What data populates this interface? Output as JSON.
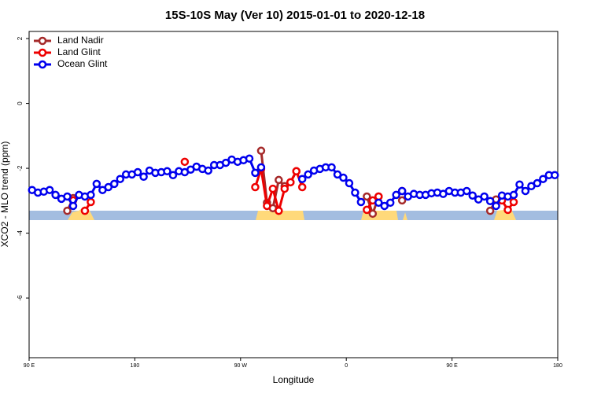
{
  "chart_data": {
    "type": "line",
    "title": "15S-10S May (Ver 10)   2015-01-01 to 2020-12-18",
    "x_label": "Longitude",
    "y_label": "XCO2 - MLO trend (ppm)",
    "xlim": [
      90,
      540
    ],
    "xticks": [
      {
        "value": 90,
        "label": "90 E"
      },
      {
        "value": 180,
        "label": "180"
      },
      {
        "value": 270,
        "label": "90 W"
      },
      {
        "value": 360,
        "label": "0"
      },
      {
        "value": 450,
        "label": "90 E"
      },
      {
        "value": 540,
        "label": "180"
      }
    ],
    "ylim": [
      -7.84,
      2.22
    ],
    "yticks": [
      -6,
      -4,
      -2,
      0,
      2
    ],
    "legend": "top-left",
    "x": [
      92.5,
      97.5,
      102.5,
      107.5,
      112.5,
      117.5,
      122.5,
      127.5,
      132.5,
      137.5,
      142.5,
      147.5,
      152.5,
      157.5,
      162.5,
      167.5,
      172.5,
      177.5,
      182.5,
      187.5,
      192.5,
      197.5,
      202.5,
      207.5,
      212.5,
      217.5,
      222.5,
      227.5,
      232.5,
      237.5,
      242.5,
      247.5,
      252.5,
      257.5,
      262.5,
      267.5,
      272.5,
      277.5,
      282.5,
      287.5,
      292.5,
      297.5,
      302.5,
      307.5,
      312.5,
      317.5,
      322.5,
      327.5,
      332.5,
      337.5,
      342.5,
      347.5,
      352.5,
      357.5,
      362.5,
      367.5,
      372.5,
      377.5,
      382.5,
      387.5,
      392.5,
      397.5,
      402.5,
      407.5,
      412.5,
      417.5,
      422.5,
      427.5,
      432.5,
      437.5,
      442.5,
      447.5,
      452.5,
      457.5,
      462.5,
      467.5,
      472.5,
      477.5,
      482.5,
      487.5,
      492.5,
      497.5,
      502.5,
      507.5,
      512.5,
      517.5,
      522.5,
      527.5,
      532.5,
      537.5
    ],
    "series": [
      {
        "name": "Land Nadir",
        "color": "#a52a2a",
        "values": [
          null,
          null,
          null,
          null,
          null,
          null,
          -3.31,
          -2.92,
          null,
          null,
          null,
          null,
          null,
          null,
          null,
          null,
          null,
          null,
          null,
          null,
          null,
          null,
          null,
          null,
          null,
          null,
          null,
          null,
          null,
          null,
          null,
          null,
          null,
          null,
          null,
          null,
          null,
          null,
          null,
          -1.46,
          -3.06,
          -3.23,
          -2.36,
          -2.55,
          -2.43,
          -2.09,
          null,
          null,
          null,
          null,
          null,
          null,
          null,
          null,
          null,
          null,
          null,
          -2.87,
          -3.4,
          -2.87,
          null,
          null,
          null,
          -2.99,
          null,
          null,
          null,
          null,
          null,
          null,
          null,
          null,
          null,
          null,
          null,
          null,
          null,
          null,
          -3.31,
          -2.96,
          null,
          null,
          null,
          null,
          null,
          null,
          null,
          null,
          null,
          null
        ]
      },
      {
        "name": "Land Glint",
        "color": "#ee0000",
        "values": [
          null,
          null,
          null,
          null,
          null,
          null,
          null,
          -2.99,
          null,
          -3.31,
          -3.04,
          null,
          null,
          null,
          null,
          null,
          null,
          null,
          null,
          null,
          null,
          null,
          null,
          null,
          null,
          null,
          -1.8,
          null,
          null,
          null,
          null,
          null,
          null,
          null,
          null,
          null,
          null,
          null,
          -2.58,
          -2.02,
          -3.16,
          -2.63,
          -3.31,
          -2.63,
          -2.43,
          -2.09,
          -2.58,
          null,
          null,
          null,
          null,
          null,
          null,
          null,
          null,
          null,
          null,
          -3.28,
          -2.99,
          -2.87,
          null,
          null,
          null,
          -2.7,
          null,
          null,
          null,
          null,
          null,
          null,
          null,
          null,
          null,
          null,
          null,
          null,
          null,
          null,
          null,
          null,
          -2.99,
          -3.28,
          -3.04,
          null,
          null,
          null,
          null,
          null,
          null,
          null
        ]
      },
      {
        "name": "Ocean Glint",
        "color": "#0000ee",
        "values": [
          -2.67,
          -2.75,
          -2.72,
          -2.67,
          -2.82,
          -2.94,
          -2.87,
          -3.16,
          -2.82,
          -2.87,
          -2.82,
          -2.48,
          -2.67,
          -2.58,
          -2.48,
          -2.33,
          -2.19,
          -2.19,
          -2.12,
          -2.26,
          -2.07,
          -2.14,
          -2.12,
          -2.09,
          -2.21,
          -2.09,
          -2.12,
          -2.04,
          -1.95,
          -2.02,
          -2.07,
          -1.9,
          -1.9,
          -1.83,
          -1.73,
          -1.8,
          -1.75,
          -1.7,
          -2.14,
          -1.97,
          null,
          null,
          null,
          null,
          null,
          null,
          -2.33,
          -2.19,
          -2.07,
          -2.02,
          -1.97,
          -1.97,
          -2.19,
          -2.29,
          -2.46,
          -2.75,
          -3.04,
          null,
          null,
          -3.06,
          -3.16,
          -3.06,
          -2.82,
          -2.7,
          -2.87,
          -2.79,
          -2.82,
          -2.82,
          -2.77,
          -2.75,
          -2.79,
          -2.7,
          -2.75,
          -2.75,
          -2.7,
          -2.84,
          -2.96,
          -2.87,
          -3.01,
          -3.16,
          -2.84,
          -2.87,
          -2.82,
          -2.5,
          -2.7,
          -2.55,
          -2.46,
          -2.33,
          -2.21,
          -2.21
        ]
      }
    ]
  }
}
